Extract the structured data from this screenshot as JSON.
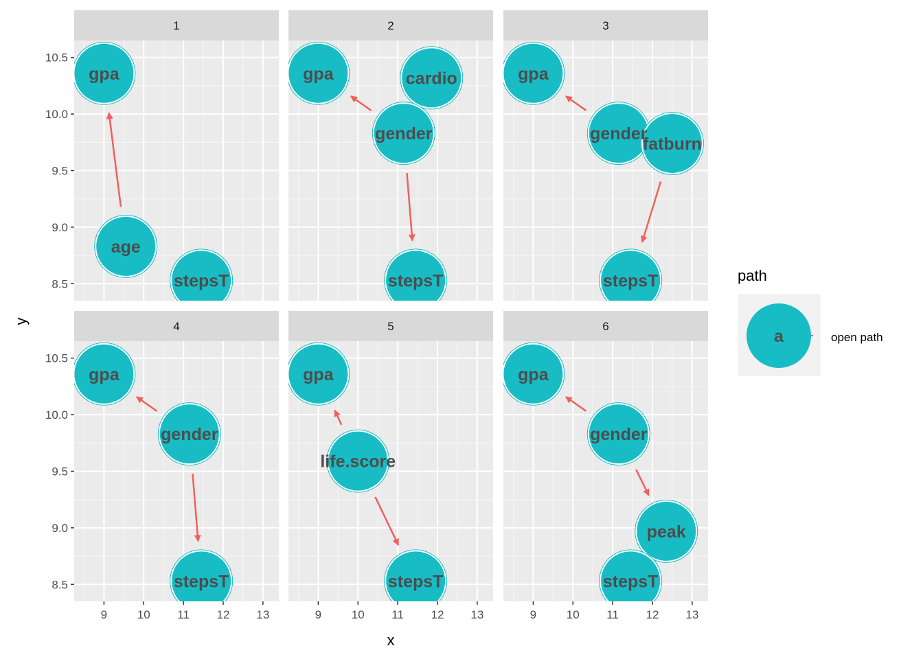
{
  "chart_data": {
    "type": "scatter",
    "subtype": "faceted-dag",
    "xlabel": "x",
    "ylabel": "y",
    "xlim": [
      8.25,
      13.4
    ],
    "ylim": [
      8.35,
      10.65
    ],
    "x_ticks": [
      9,
      10,
      11,
      12,
      13
    ],
    "y_ticks": [
      8.5,
      9.0,
      9.5,
      10.0,
      10.5
    ],
    "y_tick_labels": [
      "8.5",
      "9.0",
      "9.5",
      "10.0",
      "10.5"
    ],
    "grid": true,
    "colors": {
      "node_fill": "#18BCC5",
      "edge": "#F0605A",
      "label": "#4D4D4D",
      "panel_bg": "#EBEBEB",
      "strip_bg": "#D9D9D9"
    },
    "legend": {
      "title": "path",
      "key_label": "a",
      "entry": "open path",
      "position": "right"
    },
    "facets": [
      {
        "label": "1",
        "nodes": [
          {
            "name": "gpa",
            "x": 9.0,
            "y": 10.36
          },
          {
            "name": "age",
            "x": 9.55,
            "y": 8.83
          },
          {
            "name": "stepsT",
            "x": 11.45,
            "y": 8.53
          }
        ],
        "edges": [
          {
            "from": "age",
            "to": "gpa"
          }
        ]
      },
      {
        "label": "2",
        "nodes": [
          {
            "name": "gpa",
            "x": 9.0,
            "y": 10.36
          },
          {
            "name": "cardio",
            "x": 11.85,
            "y": 10.32
          },
          {
            "name": "gender",
            "x": 11.15,
            "y": 9.83
          },
          {
            "name": "stepsT",
            "x": 11.45,
            "y": 8.53
          }
        ],
        "edges": [
          {
            "from": "gender",
            "to": "gpa"
          },
          {
            "from": "gender",
            "to": "stepsT"
          }
        ]
      },
      {
        "label": "3",
        "nodes": [
          {
            "name": "gpa",
            "x": 9.0,
            "y": 10.36
          },
          {
            "name": "gender",
            "x": 11.15,
            "y": 9.83
          },
          {
            "name": "fatburn",
            "x": 12.5,
            "y": 9.74
          },
          {
            "name": "stepsT",
            "x": 11.45,
            "y": 8.53
          }
        ],
        "edges": [
          {
            "from": "gender",
            "to": "gpa"
          },
          {
            "from": "fatburn",
            "to": "stepsT"
          }
        ]
      },
      {
        "label": "4",
        "nodes": [
          {
            "name": "gpa",
            "x": 9.0,
            "y": 10.36
          },
          {
            "name": "gender",
            "x": 11.15,
            "y": 9.83
          },
          {
            "name": "stepsT",
            "x": 11.45,
            "y": 8.53
          }
        ],
        "edges": [
          {
            "from": "gender",
            "to": "gpa"
          },
          {
            "from": "gender",
            "to": "stepsT"
          }
        ]
      },
      {
        "label": "5",
        "nodes": [
          {
            "name": "gpa",
            "x": 9.0,
            "y": 10.36
          },
          {
            "name": "life.score",
            "x": 10.0,
            "y": 9.59
          },
          {
            "name": "stepsT",
            "x": 11.45,
            "y": 8.53
          }
        ],
        "edges": [
          {
            "from": "life.score",
            "to": "gpa"
          },
          {
            "from": "life.score",
            "to": "stepsT"
          }
        ]
      },
      {
        "label": "6",
        "nodes": [
          {
            "name": "gpa",
            "x": 9.0,
            "y": 10.36
          },
          {
            "name": "gender",
            "x": 11.15,
            "y": 9.83
          },
          {
            "name": "peak",
            "x": 12.35,
            "y": 8.97
          },
          {
            "name": "stepsT",
            "x": 11.45,
            "y": 8.53
          }
        ],
        "edges": [
          {
            "from": "gender",
            "to": "gpa"
          },
          {
            "from": "gender",
            "to": "peak"
          }
        ]
      }
    ]
  }
}
